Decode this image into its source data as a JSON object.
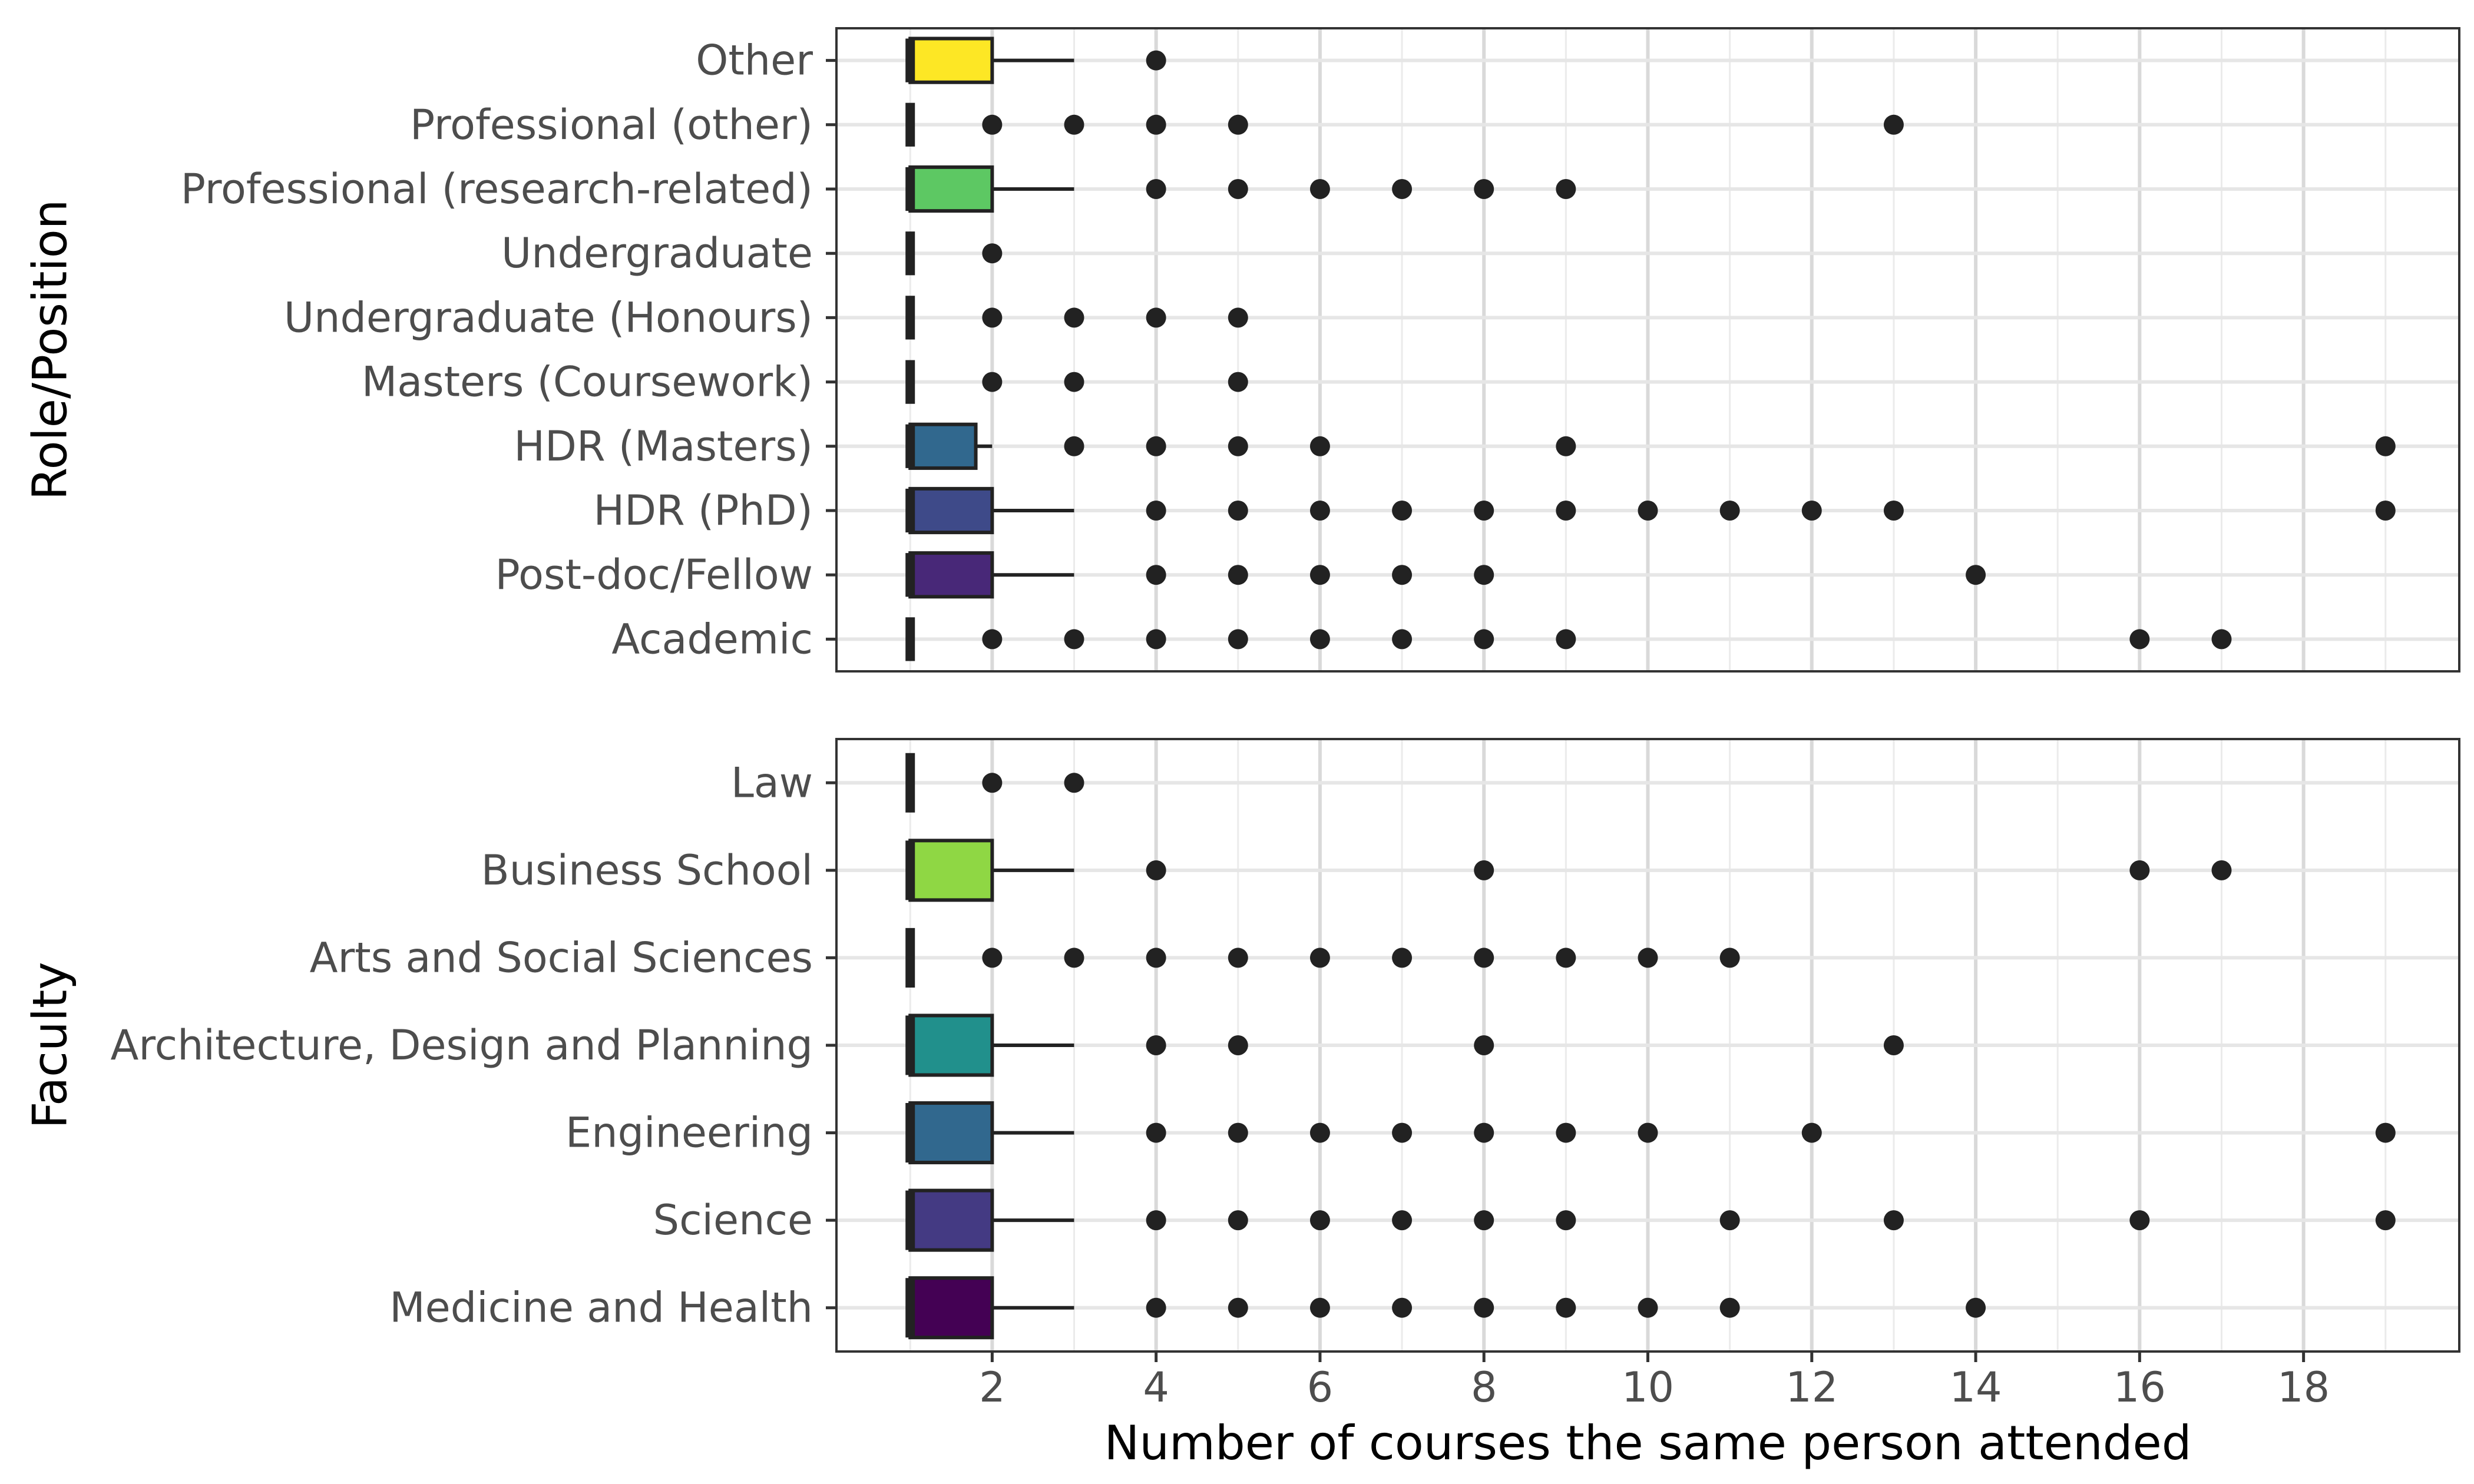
{
  "chart_data": [
    {
      "type": "boxplot",
      "orientation": "horizontal",
      "ylabel": "Role/Position",
      "xlabel": "",
      "xlim": [
        0.1,
        19.9
      ],
      "grid": true,
      "categories": [
        "Academic",
        "Post-doc/Fellow",
        "HDR (PhD)",
        "HDR (Masters)",
        "Masters (Coursework)",
        "Undergraduate (Honours)",
        "Undergraduate",
        "Professional (research-related)",
        "Professional (other)",
        "Other"
      ],
      "boxes": [
        {
          "category": "Academic",
          "q1": 1,
          "median": 1,
          "q3": 1,
          "whisker_low": 1,
          "whisker_high": 1,
          "outliers": [
            2,
            3,
            4,
            5,
            6,
            7,
            8,
            9,
            16,
            17
          ],
          "color": "#440154"
        },
        {
          "category": "Post-doc/Fellow",
          "q1": 1,
          "median": 1,
          "q3": 2,
          "whisker_low": 1,
          "whisker_high": 3,
          "outliers": [
            4,
            5,
            6,
            7,
            8,
            14
          ],
          "color": "#482878"
        },
        {
          "category": "HDR (PhD)",
          "q1": 1,
          "median": 1,
          "q3": 2,
          "whisker_low": 1,
          "whisker_high": 3,
          "outliers": [
            4,
            5,
            6,
            7,
            8,
            9,
            10,
            11,
            12,
            13,
            19
          ],
          "color": "#3E4A89"
        },
        {
          "category": "HDR (Masters)",
          "q1": 1,
          "median": 1,
          "q3": 1.8,
          "whisker_low": 1,
          "whisker_high": 2,
          "outliers": [
            3,
            4,
            5,
            6,
            9,
            19
          ],
          "color": "#31688E"
        },
        {
          "category": "Masters (Coursework)",
          "q1": 1,
          "median": 1,
          "q3": 1,
          "whisker_low": 1,
          "whisker_high": 1,
          "outliers": [
            2,
            3,
            5
          ],
          "color": "#26828E"
        },
        {
          "category": "Undergraduate (Honours)",
          "q1": 1,
          "median": 1,
          "q3": 1,
          "whisker_low": 1,
          "whisker_high": 1,
          "outliers": [
            2,
            3,
            4,
            5
          ],
          "color": "#1F9E89"
        },
        {
          "category": "Undergraduate",
          "q1": 1,
          "median": 1,
          "q3": 1,
          "whisker_low": 1,
          "whisker_high": 1,
          "outliers": [
            2
          ],
          "color": "#35B779"
        },
        {
          "category": "Professional (research-related)",
          "q1": 1,
          "median": 1,
          "q3": 2,
          "whisker_low": 1,
          "whisker_high": 3,
          "outliers": [
            4,
            5,
            6,
            7,
            8,
            9
          ],
          "color": "#5DC863"
        },
        {
          "category": "Professional (other)",
          "q1": 1,
          "median": 1,
          "q3": 1,
          "whisker_low": 1,
          "whisker_high": 1,
          "outliers": [
            2,
            3,
            4,
            5,
            13
          ],
          "color": "#B4DE2C"
        },
        {
          "category": "Other",
          "q1": 1,
          "median": 1,
          "q3": 2,
          "whisker_low": 1,
          "whisker_high": 3,
          "outliers": [
            4
          ],
          "color": "#FDE725"
        }
      ]
    },
    {
      "type": "boxplot",
      "orientation": "horizontal",
      "ylabel": "Faculty",
      "xlabel": "Number of courses the same person attended",
      "xlim": [
        0.1,
        19.9
      ],
      "xticks": [
        2,
        4,
        6,
        8,
        10,
        12,
        14,
        16,
        18
      ],
      "grid": true,
      "categories": [
        "Medicine and Health",
        "Science",
        "Engineering",
        "Architecture, Design and Planning",
        "Arts and Social Sciences",
        "Business School",
        "Law"
      ],
      "boxes": [
        {
          "category": "Medicine and Health",
          "q1": 1,
          "median": 1,
          "q3": 2,
          "whisker_low": 1,
          "whisker_high": 3,
          "outliers": [
            4,
            5,
            6,
            7,
            8,
            9,
            10,
            11,
            14
          ],
          "color": "#440154"
        },
        {
          "category": "Science",
          "q1": 1,
          "median": 1,
          "q3": 2,
          "whisker_low": 1,
          "whisker_high": 3,
          "outliers": [
            4,
            5,
            6,
            7,
            8,
            9,
            11,
            13,
            16,
            19
          ],
          "color": "#443A83"
        },
        {
          "category": "Engineering",
          "q1": 1,
          "median": 1,
          "q3": 2,
          "whisker_low": 1,
          "whisker_high": 3,
          "outliers": [
            4,
            5,
            6,
            7,
            8,
            9,
            10,
            12,
            19
          ],
          "color": "#31688E"
        },
        {
          "category": "Architecture, Design and Planning",
          "q1": 1,
          "median": 1,
          "q3": 2,
          "whisker_low": 1,
          "whisker_high": 3,
          "outliers": [
            4,
            5,
            8,
            13
          ],
          "color": "#21908C"
        },
        {
          "category": "Arts and Social Sciences",
          "q1": 1,
          "median": 1,
          "q3": 1,
          "whisker_low": 1,
          "whisker_high": 1,
          "outliers": [
            2,
            3,
            4,
            5,
            6,
            7,
            8,
            9,
            10,
            11
          ],
          "color": "#35B779"
        },
        {
          "category": "Business School",
          "q1": 1,
          "median": 1,
          "q3": 2,
          "whisker_low": 1,
          "whisker_high": 3,
          "outliers": [
            4,
            8,
            16,
            17
          ],
          "color": "#8FD744"
        },
        {
          "category": "Law",
          "q1": 1,
          "median": 1,
          "q3": 1,
          "whisker_low": 1,
          "whisker_high": 1,
          "outliers": [
            2,
            3
          ],
          "color": "#FDE725"
        }
      ]
    }
  ]
}
